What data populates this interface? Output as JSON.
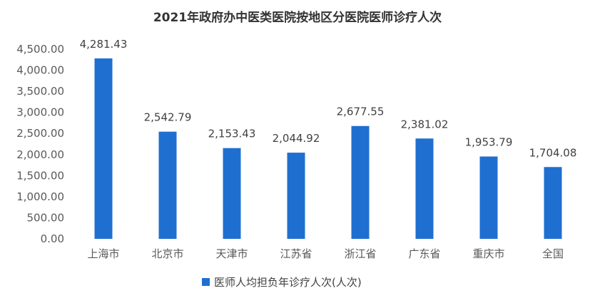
{
  "chart_data": {
    "type": "bar",
    "title": "2021年政府办中医类医院按地区分医院医师诊疗人次",
    "categories": [
      "上海市",
      "北京市",
      "天津市",
      "江苏省",
      "浙江省",
      "广东省",
      "重庆市",
      "全国"
    ],
    "series": [
      {
        "name": "医师人均担负年诊疗人次(人次)",
        "values": [
          4281.43,
          2542.79,
          2153.43,
          2044.92,
          2677.55,
          2381.02,
          1953.79,
          1704.08
        ],
        "labels": [
          "4,281.43",
          "2,542.79",
          "2,153.43",
          "2,044.92",
          "2,677.55",
          "2,381.02",
          "1,953.79",
          "1,704.08"
        ]
      }
    ],
    "ylim": [
      0,
      4500
    ],
    "yticks": [
      0,
      500,
      1000,
      1500,
      2000,
      2500,
      3000,
      3500,
      4000,
      4500
    ],
    "ytick_labels": [
      "0.00",
      "500.00",
      "1,000.00",
      "1,500.00",
      "2,000.00",
      "2,500.00",
      "3,000.00",
      "3,500.00",
      "4,000.00",
      "4,500.00"
    ],
    "grid": false,
    "legend_position": "bottom",
    "bar_color": "#1f6fd1"
  }
}
